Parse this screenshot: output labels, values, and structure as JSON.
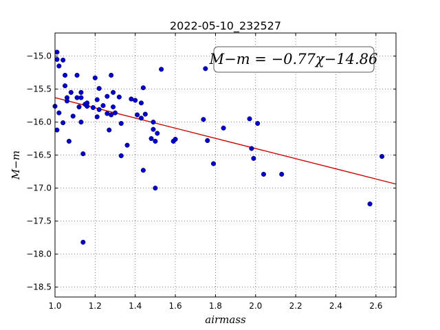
{
  "chart_data": {
    "type": "scatter",
    "title": "2022-05-10_232527",
    "xlabel": "airmass",
    "ylabel": "M−m",
    "xlim": [
      1.0,
      2.7
    ],
    "ylim": [
      -18.65,
      -14.65
    ],
    "y_inverted": true,
    "grid": true,
    "xticks": [
      1.0,
      1.2,
      1.4,
      1.6,
      1.8,
      2.0,
      2.2,
      2.4,
      2.6
    ],
    "xtick_labels": [
      "1.0",
      "1.2",
      "1.4",
      "1.6",
      "1.8",
      "2.0",
      "2.2",
      "2.4",
      "2.6"
    ],
    "yticks": [
      -15.0,
      -15.5,
      -16.0,
      -16.5,
      -17.0,
      -17.5,
      -18.0,
      -18.5
    ],
    "ytick_labels": [
      "−15.0",
      "−15.5",
      "−16.0",
      "−16.5",
      "−17.0",
      "−17.5",
      "−18.0",
      "−18.5"
    ],
    "annotation": "M−m = −0.77χ−14.86",
    "fit": {
      "slope": -0.77,
      "intercept": -14.86,
      "color": "#cc0000"
    },
    "point_color": "#0000cc",
    "points": [
      [
        1.0,
        -15.76
      ],
      [
        1.01,
        -15.05
      ],
      [
        1.01,
        -16.12
      ],
      [
        1.01,
        -14.94
      ],
      [
        1.02,
        -15.15
      ],
      [
        1.02,
        -15.86
      ],
      [
        1.04,
        -15.06
      ],
      [
        1.04,
        -16.01
      ],
      [
        1.05,
        -15.29
      ],
      [
        1.05,
        -15.45
      ],
      [
        1.06,
        -15.63
      ],
      [
        1.06,
        -15.68
      ],
      [
        1.07,
        -16.29
      ],
      [
        1.08,
        -15.55
      ],
      [
        1.09,
        -15.91
      ],
      [
        1.11,
        -15.29
      ],
      [
        1.11,
        -15.63
      ],
      [
        1.12,
        -15.77
      ],
      [
        1.13,
        -15.55
      ],
      [
        1.13,
        -15.63
      ],
      [
        1.13,
        -16.0
      ],
      [
        1.14,
        -16.48
      ],
      [
        1.14,
        -17.82
      ],
      [
        1.15,
        -15.73
      ],
      [
        1.16,
        -15.76
      ],
      [
        1.16,
        -15.71
      ],
      [
        1.19,
        -15.78
      ],
      [
        1.2,
        -15.33
      ],
      [
        1.21,
        -15.66
      ],
      [
        1.21,
        -15.92
      ],
      [
        1.22,
        -15.49
      ],
      [
        1.22,
        -15.81
      ],
      [
        1.24,
        -15.75
      ],
      [
        1.26,
        -15.61
      ],
      [
        1.26,
        -15.87
      ],
      [
        1.27,
        -16.12
      ],
      [
        1.28,
        -15.29
      ],
      [
        1.28,
        -15.89
      ],
      [
        1.29,
        -15.55
      ],
      [
        1.29,
        -15.77
      ],
      [
        1.3,
        -15.86
      ],
      [
        1.32,
        -15.62
      ],
      [
        1.33,
        -16.51
      ],
      [
        1.33,
        -16.02
      ],
      [
        1.36,
        -16.35
      ],
      [
        1.38,
        -15.65
      ],
      [
        1.4,
        -15.67
      ],
      [
        1.41,
        -15.89
      ],
      [
        1.43,
        -15.71
      ],
      [
        1.43,
        -15.94
      ],
      [
        1.44,
        -16.73
      ],
      [
        1.44,
        -15.48
      ],
      [
        1.45,
        -15.88
      ],
      [
        1.48,
        -16.25
      ],
      [
        1.49,
        -16.11
      ],
      [
        1.49,
        -16.0
      ],
      [
        1.5,
        -16.29
      ],
      [
        1.5,
        -17.0
      ],
      [
        1.51,
        -16.17
      ],
      [
        1.53,
        -15.2
      ],
      [
        1.59,
        -16.29
      ],
      [
        1.6,
        -16.26
      ],
      [
        1.74,
        -15.96
      ],
      [
        1.75,
        -15.19
      ],
      [
        1.76,
        -16.28
      ],
      [
        1.79,
        -16.63
      ],
      [
        1.84,
        -16.09
      ],
      [
        1.97,
        -15.95
      ],
      [
        1.98,
        -16.4
      ],
      [
        1.99,
        -16.55
      ],
      [
        2.01,
        -16.02
      ],
      [
        2.04,
        -16.79
      ],
      [
        2.13,
        -16.79
      ],
      [
        2.57,
        -17.24
      ],
      [
        2.63,
        -16.52
      ]
    ]
  }
}
